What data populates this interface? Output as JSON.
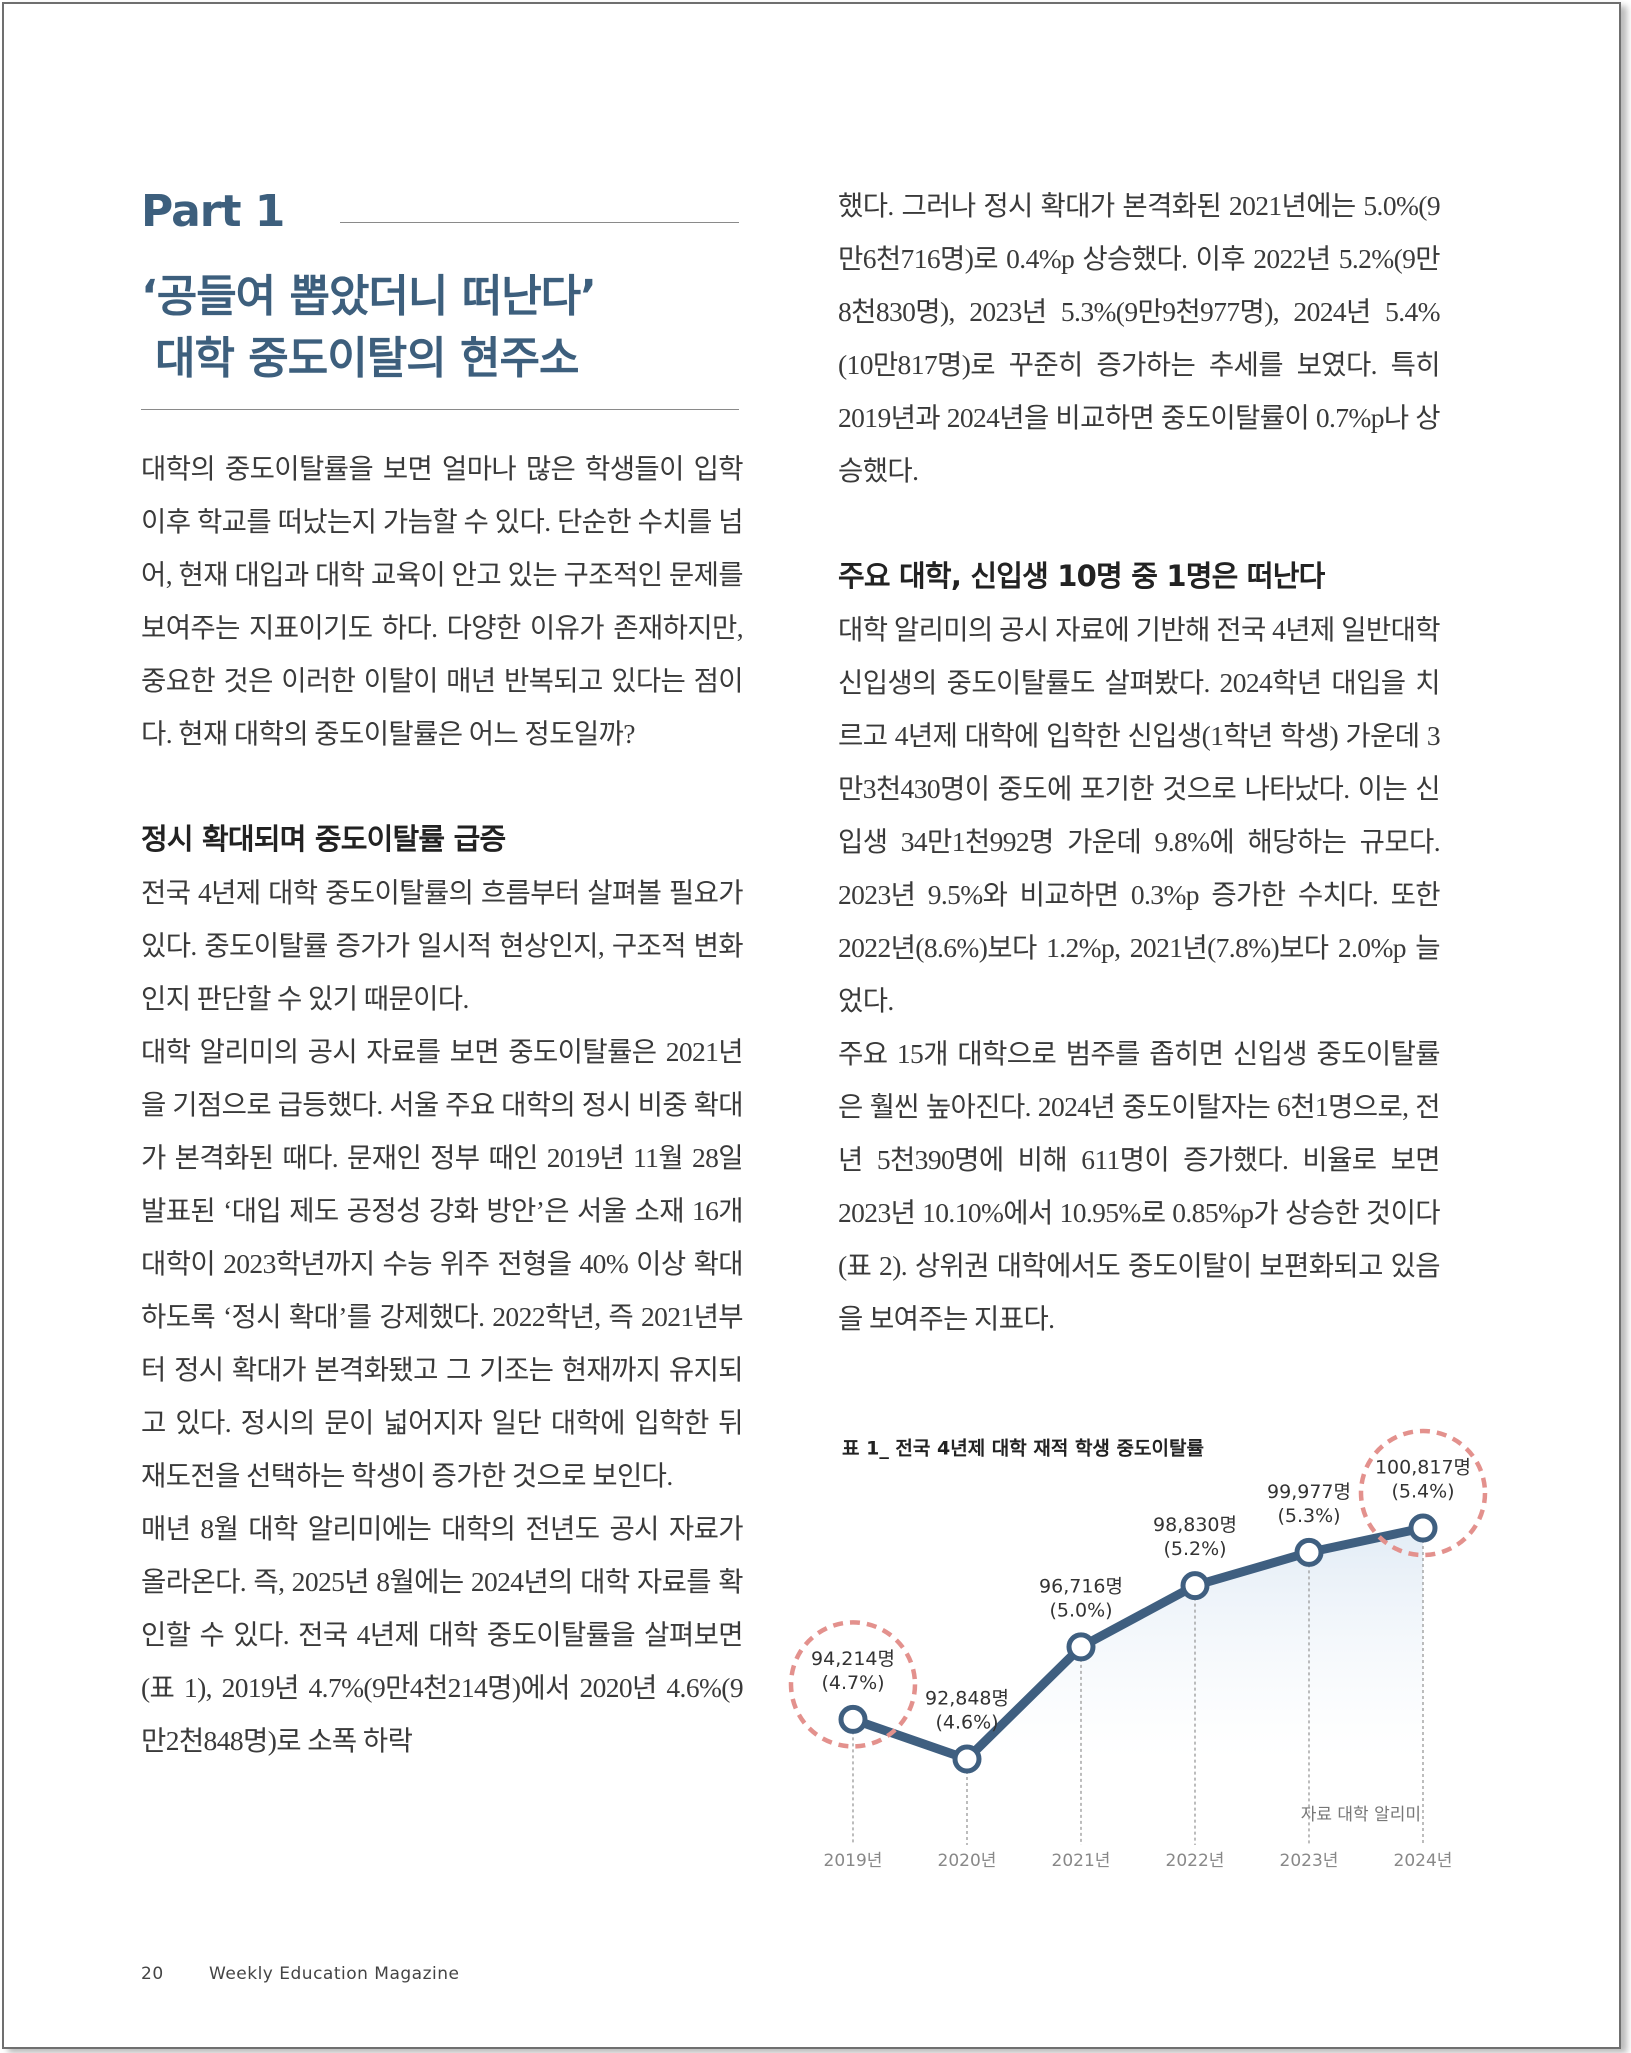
{
  "header": {
    "part": "Part 1",
    "headline": [
      "‘공들여 뽑았더니 떠난다’",
      "대학 중도이탈의 현주소"
    ]
  },
  "left_column": [
    {
      "kind": "paragraph",
      "text": "대학의 중도이탈률을 보면 얼마나 많은 학생들이 입학 이후 학교를 떠났는지 가늠할 수 있다. 단순한 수치를 넘어, 현재 대입과 대학 교육이 안고 있는 구조적인 문제를 보여주는 지표이기도 하다. 다양한 이유가 존재하지만, 중요한 것은 이러한 이탈이 매년 반복되고 있다는 점이다. 현재 대학의 중도이탈률은 어느 정도일까?"
    },
    {
      "kind": "subheading",
      "text": "정시 확대되며 중도이탈률 급증"
    },
    {
      "kind": "paragraph",
      "text": "전국 4년제 대학 중도이탈률의 흐름부터 살펴볼 필요가 있다. 중도이탈률 증가가 일시적 현상인지, 구조적 변화인지 판단할 수 있기 때문이다."
    },
    {
      "kind": "paragraph",
      "text": "대학 알리미의 공시 자료를 보면 중도이탈률은 2021년을 기점으로 급등했다. 서울 주요 대학의 정시 비중 확대가 본격화된 때다. 문재인 정부 때인 2019년 11월 28일 발표된 ‘대입 제도 공정성 강화 방안’은 서울 소재 16개 대학이 2023학년까지 수능 위주 전형을 40% 이상 확대하도록 ‘정시 확대’를 강제했다. 2022학년, 즉 2021년부터 정시 확대가 본격화됐고 그 기조는 현재까지 유지되고 있다. 정시의 문이 넓어지자 일단 대학에 입학한 뒤 재도전을 선택하는 학생이 증가한 것으로 보인다."
    },
    {
      "kind": "paragraph",
      "text": "매년 8월 대학 알리미에는 대학의 전년도 공시 자료가 올라온다. 즉, 2025년 8월에는 2024년의 대학 자료를 확인할 수 있다. 전국 4년제 대학 중도이탈률을 살펴보면(표 1), 2019년 4.7%(9만4천214명)에서 2020년 4.6%(9만2천848명)로 소폭 하락"
    }
  ],
  "right_column": [
    {
      "kind": "paragraph",
      "text": "했다. 그러나 정시 확대가 본격화된 2021년에는 5.0%(9만6천716명)로 0.4%p 상승했다. 이후 2022년 5.2%(9만8천830명), 2023년 5.3%(9만9천977명), 2024년 5.4%(10만817명)로 꾸준히 증가하는 추세를 보였다. 특히 2019년과 2024년을 비교하면 중도이탈률이 0.7%p나 상승했다."
    },
    {
      "kind": "subheading",
      "text": "주요 대학, 신입생 10명 중 1명은 떠난다"
    },
    {
      "kind": "paragraph",
      "text": "대학 알리미의 공시 자료에 기반해 전국 4년제 일반대학 신입생의 중도이탈률도 살펴봤다. 2024학년 대입을 치르고 4년제 대학에 입학한 신입생(1학년 학생) 가운데 3만3천430명이 중도에 포기한 것으로 나타났다. 이는 신입생 34만1천992명 가운데 9.8%에 해당하는 규모다. 2023년 9.5%와 비교하면 0.3%p 증가한 수치다. 또한 2022년(8.6%)보다 1.2%p, 2021년(7.8%)보다 2.0%p 늘었다."
    },
    {
      "kind": "paragraph",
      "text": "주요 15개 대학으로 범주를 좁히면 신입생 중도이탈률은 훨씬 높아진다. 2024년 중도이탈자는 6천1명으로, 전년 5천390명에 비해 611명이 증가했다. 비율로 보면 2023년 10.10%에서 10.95%로 0.85%p가 상승한 것이다(표 2). 상위권 대학에서도 중도이탈이 보편화되고 있음을 보여주는 지표다."
    }
  ],
  "chart_data": {
    "type": "line",
    "title": "표 1_ 전국 4년제 대학 재적 학생 중도이탈률",
    "categories": [
      "2019년",
      "2020년",
      "2021년",
      "2022년",
      "2023년",
      "2024년"
    ],
    "values": [
      94214,
      92848,
      96716,
      98830,
      99977,
      100817
    ],
    "value_labels": [
      "94,214명",
      "92,848명",
      "96,716명",
      "98,830명",
      "99,977명",
      "100,817명"
    ],
    "rate_labels": [
      "(4.7%)",
      "(4.6%)",
      "(5.0%)",
      "(5.2%)",
      "(5.3%)",
      "(5.4%)"
    ],
    "color": "#3f5f80",
    "highlight_color": "#e3918d",
    "highlighted": [
      0,
      5
    ],
    "source": "자료 대학 알리미"
  },
  "footer": {
    "page": "20",
    "magazine": "Weekly Education Magazine"
  }
}
